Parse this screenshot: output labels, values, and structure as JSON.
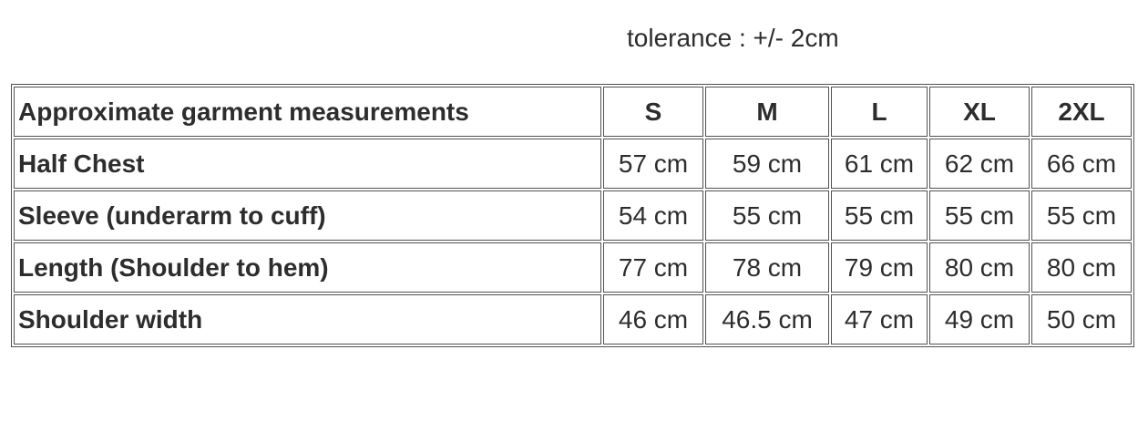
{
  "note": {
    "text": "tolerance : +/- 2cm"
  },
  "chart_data": {
    "type": "table",
    "title": "tolerance : +/- 2cm",
    "tolerance": "+/- 2cm",
    "unit": "cm",
    "columns": [
      "Approximate garment measurements",
      "S",
      "M",
      "L",
      "XL",
      "2XL"
    ],
    "rows": [
      {
        "label": "Half Chest",
        "values": [
          "57 cm",
          "59 cm",
          "61 cm",
          "62 cm",
          "66 cm"
        ],
        "values_cm": [
          57,
          59,
          61,
          62,
          66
        ]
      },
      {
        "label": "Sleeve (underarm to cuff)",
        "values": [
          "54 cm",
          "55 cm",
          "55 cm",
          "55 cm",
          "55 cm"
        ],
        "values_cm": [
          54,
          55,
          55,
          55,
          55
        ]
      },
      {
        "label": "Length (Shoulder to hem)",
        "values": [
          "77 cm",
          "78 cm",
          "79 cm",
          "80 cm",
          "80 cm"
        ],
        "values_cm": [
          77,
          78,
          79,
          80,
          80
        ]
      },
      {
        "label": "Shoulder width",
        "values": [
          "46 cm",
          "46.5 cm",
          "47 cm",
          "49 cm",
          "50 cm"
        ],
        "values_cm": [
          46,
          46.5,
          47,
          49,
          50
        ]
      }
    ]
  },
  "colors": {
    "text": "#2d2d2d",
    "border": "#515151",
    "background": "#ffffff"
  }
}
